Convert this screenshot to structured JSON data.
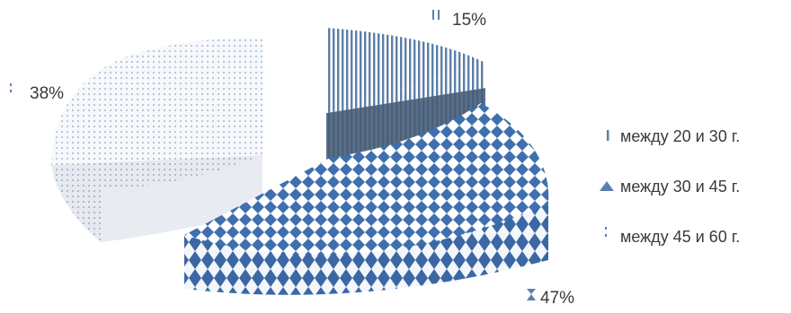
{
  "chart_data": {
    "type": "pie",
    "style": "3d-exploded",
    "legend_position": "right",
    "categories": [
      "между 20 и 30 г.",
      "между 30 и 45 г.",
      "между 45 и 60 г."
    ],
    "values": [
      15,
      47,
      38
    ],
    "data_labels": [
      "15%",
      "47%",
      "38%"
    ],
    "colors": [
      "#4f6e96",
      "#3f6fae",
      "#a9b8cc"
    ]
  }
}
